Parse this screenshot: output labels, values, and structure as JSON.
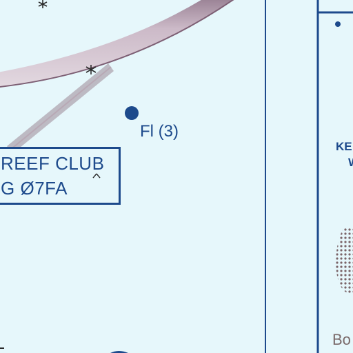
{
  "airport": {
    "name": "REEF CLUB",
    "id_prefix": "G",
    "identifier": "Ø7FA"
  },
  "light": {
    "label": "Fl (3)"
  },
  "inset": {
    "text_1": "KE",
    "text_2": "W",
    "text_3": "Bo"
  },
  "colors": {
    "water": "#e6f7fb",
    "chart_blue": "#1d4a8c",
    "restricted_area": "#b79aab"
  },
  "symbols": {
    "obstruction": "obstruction-icon",
    "light": "light-beacon-icon",
    "runway": "runway-icon"
  }
}
